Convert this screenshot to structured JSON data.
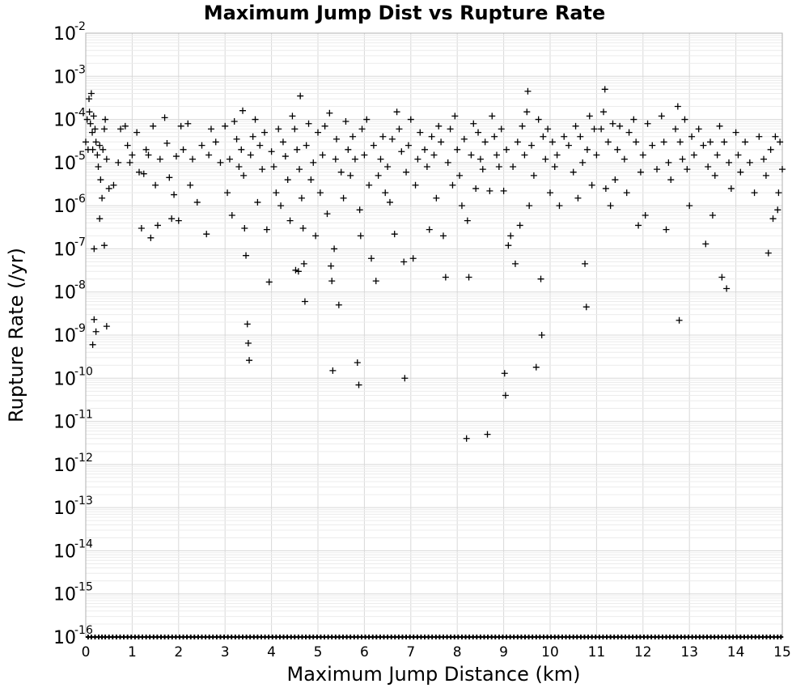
{
  "chart_data": {
    "type": "scatter",
    "title": "Maximum Jump Dist vs Rupture Rate",
    "xlabel": "Maximum Jump Distance (km)",
    "ylabel": "Rupture Rate (/yr)",
    "xlim": [
      0,
      15
    ],
    "ylim": [
      1e-16,
      0.01
    ],
    "y_scale": "log",
    "grid": true,
    "marker": "plus",
    "x_ticks": [
      "0",
      "1",
      "2",
      "3",
      "4",
      "5",
      "6",
      "7",
      "8",
      "9",
      "10",
      "11",
      "12",
      "13",
      "14",
      "15"
    ],
    "y_ticks": [
      {
        "base": "10",
        "exp": "-2"
      },
      {
        "base": "10",
        "exp": "-3"
      },
      {
        "base": "10",
        "exp": "-4"
      },
      {
        "base": "10",
        "exp": "-5"
      },
      {
        "base": "10",
        "exp": "-6"
      },
      {
        "base": "10",
        "exp": "-7"
      },
      {
        "base": "10",
        "exp": "-8"
      },
      {
        "base": "10",
        "exp": "-9"
      },
      {
        "base": "10",
        "exp": "-10"
      },
      {
        "base": "10",
        "exp": "-11"
      },
      {
        "base": "10",
        "exp": "-12"
      },
      {
        "base": "10",
        "exp": "-13"
      },
      {
        "base": "10",
        "exp": "-14"
      },
      {
        "base": "10",
        "exp": "-15"
      },
      {
        "base": "10",
        "exp": "-16"
      }
    ],
    "points": [
      [
        0.0,
        3e-05
      ],
      [
        0.03,
        0.0001
      ],
      [
        0.05,
        2e-05
      ],
      [
        0.07,
        0.0003
      ],
      [
        0.08,
        0.00015
      ],
      [
        0.1,
        8e-05
      ],
      [
        0.12,
        0.0004
      ],
      [
        0.14,
        5e-05
      ],
      [
        0.15,
        2e-05
      ],
      [
        0.17,
        0.00012
      ],
      [
        0.2,
        6e-05
      ],
      [
        0.22,
        3e-05
      ],
      [
        0.25,
        1.5e-05
      ],
      [
        0.27,
        8e-06
      ],
      [
        0.3,
        2.5e-05
      ],
      [
        0.32,
        4e-06
      ],
      [
        0.35,
        1.5e-06
      ],
      [
        0.37,
        2e-05
      ],
      [
        0.4,
        6e-05
      ],
      [
        0.42,
        0.0001
      ],
      [
        0.45,
        1.2e-05
      ],
      [
        0.5,
        2.5e-06
      ],
      [
        0.3,
        5e-07
      ],
      [
        0.18,
        1e-07
      ],
      [
        0.4,
        1.2e-07
      ],
      [
        0.15,
        6e-10
      ],
      [
        0.18,
        2.3e-09
      ],
      [
        0.22,
        1.2e-09
      ],
      [
        0.45,
        1.6e-09
      ],
      [
        0.6,
        3e-06
      ],
      [
        0.7,
        1e-05
      ],
      [
        0.75,
        6e-05
      ],
      [
        0.85,
        7e-05
      ],
      [
        0.9,
        2.5e-05
      ],
      [
        0.95,
        1e-05
      ],
      [
        1.0,
        1.5e-05
      ],
      [
        1.1,
        5e-05
      ],
      [
        1.15,
        6e-06
      ],
      [
        1.2,
        3e-07
      ],
      [
        1.25,
        5.5e-06
      ],
      [
        1.3,
        2e-05
      ],
      [
        1.35,
        1.5e-05
      ],
      [
        1.4,
        1.8e-07
      ],
      [
        1.45,
        7e-05
      ],
      [
        1.5,
        3e-06
      ],
      [
        1.55,
        3.5e-07
      ],
      [
        1.6,
        1.2e-05
      ],
      [
        1.7,
        0.00011
      ],
      [
        1.75,
        2.8e-05
      ],
      [
        1.8,
        4.5e-06
      ],
      [
        1.85,
        5e-07
      ],
      [
        1.9,
        1.8e-06
      ],
      [
        1.95,
        1.4e-05
      ],
      [
        2.0,
        4.5e-07
      ],
      [
        2.05,
        7e-05
      ],
      [
        2.1,
        2e-05
      ],
      [
        2.2,
        8e-05
      ],
      [
        2.25,
        3e-06
      ],
      [
        2.3,
        1.2e-05
      ],
      [
        2.4,
        1.2e-06
      ],
      [
        2.5,
        2.5e-05
      ],
      [
        2.6,
        2.2e-07
      ],
      [
        2.65,
        1.5e-05
      ],
      [
        2.7,
        6e-05
      ],
      [
        2.8,
        3e-05
      ],
      [
        2.9,
        1e-05
      ],
      [
        3.0,
        7e-05
      ],
      [
        3.05,
        2e-06
      ],
      [
        3.1,
        1.2e-05
      ],
      [
        3.15,
        6e-07
      ],
      [
        3.2,
        9e-05
      ],
      [
        3.25,
        3.5e-05
      ],
      [
        3.3,
        8e-06
      ],
      [
        3.35,
        2e-05
      ],
      [
        3.38,
        0.00016
      ],
      [
        3.4,
        5e-06
      ],
      [
        3.42,
        3e-07
      ],
      [
        3.45,
        7e-08
      ],
      [
        3.48,
        1.8e-09
      ],
      [
        3.5,
        6.5e-10
      ],
      [
        3.52,
        2.6e-10
      ],
      [
        3.55,
        1.5e-05
      ],
      [
        3.6,
        4e-05
      ],
      [
        3.65,
        0.0001
      ],
      [
        3.7,
        1.2e-06
      ],
      [
        3.75,
        2.5e-05
      ],
      [
        3.8,
        7e-06
      ],
      [
        3.85,
        5e-05
      ],
      [
        3.9,
        2.8e-07
      ],
      [
        3.95,
        1.7e-08
      ],
      [
        4.0,
        1.8e-05
      ],
      [
        4.05,
        8e-06
      ],
      [
        4.1,
        2e-06
      ],
      [
        4.15,
        6e-05
      ],
      [
        4.2,
        1e-06
      ],
      [
        4.25,
        3e-05
      ],
      [
        4.3,
        1.4e-05
      ],
      [
        4.35,
        4e-06
      ],
      [
        4.4,
        4.5e-07
      ],
      [
        4.45,
        0.00012
      ],
      [
        4.5,
        6e-05
      ],
      [
        4.52,
        3.2e-08
      ],
      [
        4.55,
        2e-05
      ],
      [
        4.58,
        3e-08
      ],
      [
        4.6,
        7e-06
      ],
      [
        4.62,
        0.00035
      ],
      [
        4.65,
        1.5e-06
      ],
      [
        4.68,
        3e-07
      ],
      [
        4.7,
        4.5e-08
      ],
      [
        4.72,
        6e-09
      ],
      [
        4.75,
        2.5e-05
      ],
      [
        4.8,
        8e-05
      ],
      [
        4.85,
        4e-06
      ],
      [
        4.9,
        1e-05
      ],
      [
        4.95,
        2e-07
      ],
      [
        5.0,
        5e-05
      ],
      [
        5.05,
        2e-06
      ],
      [
        5.1,
        1.5e-05
      ],
      [
        5.15,
        7e-05
      ],
      [
        5.2,
        6.5e-07
      ],
      [
        5.25,
        0.00014
      ],
      [
        5.28,
        4e-08
      ],
      [
        5.3,
        1.8e-08
      ],
      [
        5.32,
        1.5e-10
      ],
      [
        5.35,
        1e-07
      ],
      [
        5.38,
        1.2e-05
      ],
      [
        5.4,
        3.5e-05
      ],
      [
        5.45,
        5e-09
      ],
      [
        5.5,
        6e-06
      ],
      [
        5.55,
        1.5e-06
      ],
      [
        5.6,
        9e-05
      ],
      [
        5.65,
        2e-05
      ],
      [
        5.7,
        5e-06
      ],
      [
        5.75,
        4e-05
      ],
      [
        5.8,
        1.2e-05
      ],
      [
        5.85,
        2.3e-10
      ],
      [
        5.88,
        7e-11
      ],
      [
        5.9,
        8e-07
      ],
      [
        5.92,
        2e-07
      ],
      [
        5.95,
        6e-05
      ],
      [
        6.0,
        1.5e-05
      ],
      [
        6.05,
        0.0001
      ],
      [
        6.1,
        3e-06
      ],
      [
        6.15,
        6e-08
      ],
      [
        6.2,
        2.5e-05
      ],
      [
        6.25,
        1.8e-08
      ],
      [
        6.3,
        5e-06
      ],
      [
        6.35,
        1.2e-05
      ],
      [
        6.4,
        4e-05
      ],
      [
        6.45,
        2e-06
      ],
      [
        6.5,
        8e-06
      ],
      [
        6.55,
        1.2e-06
      ],
      [
        6.6,
        3.5e-05
      ],
      [
        6.65,
        2.2e-07
      ],
      [
        6.7,
        0.00015
      ],
      [
        6.75,
        6e-05
      ],
      [
        6.8,
        1.8e-05
      ],
      [
        6.85,
        5e-08
      ],
      [
        6.87,
        1e-10
      ],
      [
        6.9,
        6e-06
      ],
      [
        6.95,
        2.5e-05
      ],
      [
        7.0,
        0.0001
      ],
      [
        7.05,
        6e-08
      ],
      [
        7.1,
        3e-06
      ],
      [
        7.15,
        1.2e-05
      ],
      [
        7.2,
        5e-05
      ],
      [
        7.3,
        2e-05
      ],
      [
        7.35,
        8e-06
      ],
      [
        7.4,
        2.8e-07
      ],
      [
        7.45,
        4e-05
      ],
      [
        7.5,
        1.5e-05
      ],
      [
        7.55,
        1.5e-06
      ],
      [
        7.6,
        7e-05
      ],
      [
        7.65,
        3e-05
      ],
      [
        7.7,
        2e-07
      ],
      [
        7.75,
        2.2e-08
      ],
      [
        7.8,
        1e-05
      ],
      [
        7.85,
        6e-05
      ],
      [
        7.9,
        3e-06
      ],
      [
        7.95,
        0.00012
      ],
      [
        8.0,
        2e-05
      ],
      [
        8.05,
        5e-06
      ],
      [
        8.1,
        1e-06
      ],
      [
        8.15,
        3.5e-05
      ],
      [
        8.2,
        4e-12
      ],
      [
        8.22,
        4.5e-07
      ],
      [
        8.25,
        2.2e-08
      ],
      [
        8.3,
        1.5e-05
      ],
      [
        8.35,
        8e-05
      ],
      [
        8.4,
        2.5e-06
      ],
      [
        8.45,
        5e-05
      ],
      [
        8.5,
        1.2e-05
      ],
      [
        8.55,
        7e-06
      ],
      [
        8.6,
        3e-05
      ],
      [
        8.65,
        5e-12
      ],
      [
        8.7,
        2.2e-06
      ],
      [
        8.75,
        0.00012
      ],
      [
        8.8,
        4e-05
      ],
      [
        8.85,
        1.5e-05
      ],
      [
        8.9,
        8e-06
      ],
      [
        8.95,
        6e-05
      ],
      [
        9.0,
        2.2e-06
      ],
      [
        9.02,
        1.3e-10
      ],
      [
        9.04,
        4e-11
      ],
      [
        9.06,
        2e-05
      ],
      [
        9.1,
        1.2e-07
      ],
      [
        9.15,
        2e-07
      ],
      [
        9.2,
        8e-06
      ],
      [
        9.25,
        4.5e-08
      ],
      [
        9.3,
        3e-05
      ],
      [
        9.35,
        3.5e-07
      ],
      [
        9.4,
        7e-05
      ],
      [
        9.45,
        1.5e-05
      ],
      [
        9.5,
        0.00015
      ],
      [
        9.52,
        0.00045
      ],
      [
        9.55,
        1e-06
      ],
      [
        9.6,
        2.5e-05
      ],
      [
        9.65,
        5e-06
      ],
      [
        9.7,
        1.8e-10
      ],
      [
        9.75,
        0.0001
      ],
      [
        9.8,
        2e-08
      ],
      [
        9.82,
        1e-09
      ],
      [
        9.85,
        4e-05
      ],
      [
        9.9,
        1.2e-05
      ],
      [
        9.95,
        6e-05
      ],
      [
        10.0,
        2e-06
      ],
      [
        10.05,
        3e-05
      ],
      [
        10.1,
        8e-06
      ],
      [
        10.15,
        1.5e-05
      ],
      [
        10.2,
        1e-06
      ],
      [
        10.3,
        4e-05
      ],
      [
        10.4,
        2.5e-05
      ],
      [
        10.5,
        6e-06
      ],
      [
        10.55,
        7e-05
      ],
      [
        10.6,
        1.5e-06
      ],
      [
        10.65,
        4e-05
      ],
      [
        10.7,
        1e-05
      ],
      [
        10.75,
        4.5e-08
      ],
      [
        10.78,
        4.5e-09
      ],
      [
        10.8,
        2e-05
      ],
      [
        10.85,
        0.00012
      ],
      [
        10.9,
        3e-06
      ],
      [
        10.95,
        6e-05
      ],
      [
        11.0,
        1.5e-05
      ],
      [
        11.1,
        6e-05
      ],
      [
        11.15,
        0.00015
      ],
      [
        11.18,
        0.0005
      ],
      [
        11.2,
        2.5e-06
      ],
      [
        11.25,
        3e-05
      ],
      [
        11.3,
        1e-06
      ],
      [
        11.35,
        8e-05
      ],
      [
        11.4,
        4e-06
      ],
      [
        11.45,
        2e-05
      ],
      [
        11.5,
        7e-05
      ],
      [
        11.6,
        1.2e-05
      ],
      [
        11.65,
        2e-06
      ],
      [
        11.7,
        5e-05
      ],
      [
        11.8,
        0.0001
      ],
      [
        11.85,
        3e-05
      ],
      [
        11.9,
        3.5e-07
      ],
      [
        11.95,
        6e-06
      ],
      [
        12.0,
        1.5e-05
      ],
      [
        12.05,
        6e-07
      ],
      [
        12.1,
        8e-05
      ],
      [
        12.2,
        2.5e-05
      ],
      [
        12.3,
        7e-06
      ],
      [
        12.4,
        0.00012
      ],
      [
        12.45,
        3e-05
      ],
      [
        12.5,
        2.8e-07
      ],
      [
        12.55,
        1e-05
      ],
      [
        12.6,
        4e-06
      ],
      [
        12.7,
        6e-05
      ],
      [
        12.75,
        0.0002
      ],
      [
        12.78,
        2.2e-09
      ],
      [
        12.8,
        3e-05
      ],
      [
        12.85,
        1.2e-05
      ],
      [
        12.9,
        0.0001
      ],
      [
        12.95,
        7e-06
      ],
      [
        13.0,
        1e-06
      ],
      [
        13.05,
        4e-05
      ],
      [
        13.1,
        1.5e-05
      ],
      [
        13.2,
        6e-05
      ],
      [
        13.3,
        2.5e-05
      ],
      [
        13.35,
        1.3e-07
      ],
      [
        13.4,
        8e-06
      ],
      [
        13.45,
        3e-05
      ],
      [
        13.5,
        6e-07
      ],
      [
        13.55,
        5e-06
      ],
      [
        13.6,
        1.5e-05
      ],
      [
        13.65,
        7e-05
      ],
      [
        13.7,
        2.2e-08
      ],
      [
        13.75,
        3e-05
      ],
      [
        13.8,
        1.2e-08
      ],
      [
        13.85,
        1e-05
      ],
      [
        13.9,
        2.5e-06
      ],
      [
        14.0,
        5e-05
      ],
      [
        14.05,
        1.5e-05
      ],
      [
        14.1,
        6e-06
      ],
      [
        14.2,
        3e-05
      ],
      [
        14.3,
        1e-05
      ],
      [
        14.4,
        2e-06
      ],
      [
        14.5,
        4e-05
      ],
      [
        14.6,
        1.2e-05
      ],
      [
        14.65,
        5e-06
      ],
      [
        14.7,
        8e-08
      ],
      [
        14.75,
        2e-05
      ],
      [
        14.8,
        5e-07
      ],
      [
        14.85,
        4e-05
      ],
      [
        14.9,
        8e-07
      ],
      [
        14.92,
        2e-06
      ],
      [
        14.95,
        3e-05
      ],
      [
        15.0,
        7e-06
      ]
    ],
    "floor_value": 1e-16,
    "floor_points_x": [
      0.05,
      0.12,
      0.2,
      0.28,
      0.35,
      0.42,
      0.5,
      0.58,
      0.66,
      0.74,
      0.82,
      0.9,
      0.98,
      1.06,
      1.14,
      1.22,
      1.3,
      1.38,
      1.46,
      1.54,
      1.62,
      1.7,
      1.78,
      1.86,
      1.94,
      2.02,
      2.1,
      2.18,
      2.26,
      2.34,
      2.42,
      2.5,
      2.58,
      2.66,
      2.74,
      2.82,
      2.9,
      2.98,
      3.06,
      3.14,
      3.22,
      3.3,
      3.38,
      3.46,
      3.54,
      3.62,
      3.7,
      3.78,
      3.86,
      3.94,
      4.02,
      4.1,
      4.18,
      4.26,
      4.34,
      4.42,
      4.5,
      4.58,
      4.66,
      4.74,
      4.82,
      4.9,
      4.98,
      5.06,
      5.14,
      5.22,
      5.3,
      5.38,
      5.46,
      5.54,
      5.62,
      5.7,
      5.78,
      5.86,
      5.94,
      6.02,
      6.1,
      6.18,
      6.26,
      6.34,
      6.42,
      6.5,
      6.58,
      6.66,
      6.74,
      6.82,
      6.9,
      6.98,
      7.06,
      7.14,
      7.22,
      7.3,
      7.38,
      7.46,
      7.54,
      7.62,
      7.7,
      7.78,
      7.86,
      7.94,
      8.02,
      8.1,
      8.18,
      8.26,
      8.34,
      8.42,
      8.5,
      8.58,
      8.66,
      8.74,
      8.82,
      8.9,
      8.98,
      9.06,
      9.14,
      9.22,
      9.3,
      9.38,
      9.46,
      9.54,
      9.62,
      9.7,
      9.78,
      9.86,
      9.94,
      10.02,
      10.1,
      10.18,
      10.26,
      10.34,
      10.42,
      10.5,
      10.58,
      10.66,
      10.74,
      10.82,
      10.9,
      10.98,
      11.06,
      11.14,
      11.22,
      11.3,
      11.38,
      11.46,
      11.54,
      11.62,
      11.7,
      11.78,
      11.86,
      11.94,
      12.02,
      12.1,
      12.18,
      12.26,
      12.34,
      12.42,
      12.5,
      12.58,
      12.66,
      12.74,
      12.82,
      12.9,
      12.98,
      13.06,
      13.14,
      13.22,
      13.3,
      13.38,
      13.46,
      13.54,
      13.62,
      13.7,
      13.78,
      13.86,
      13.94,
      14.02,
      14.1,
      14.18,
      14.26,
      14.34,
      14.42,
      14.5,
      14.58,
      14.66,
      14.74,
      14.82,
      14.9,
      14.97
    ]
  }
}
